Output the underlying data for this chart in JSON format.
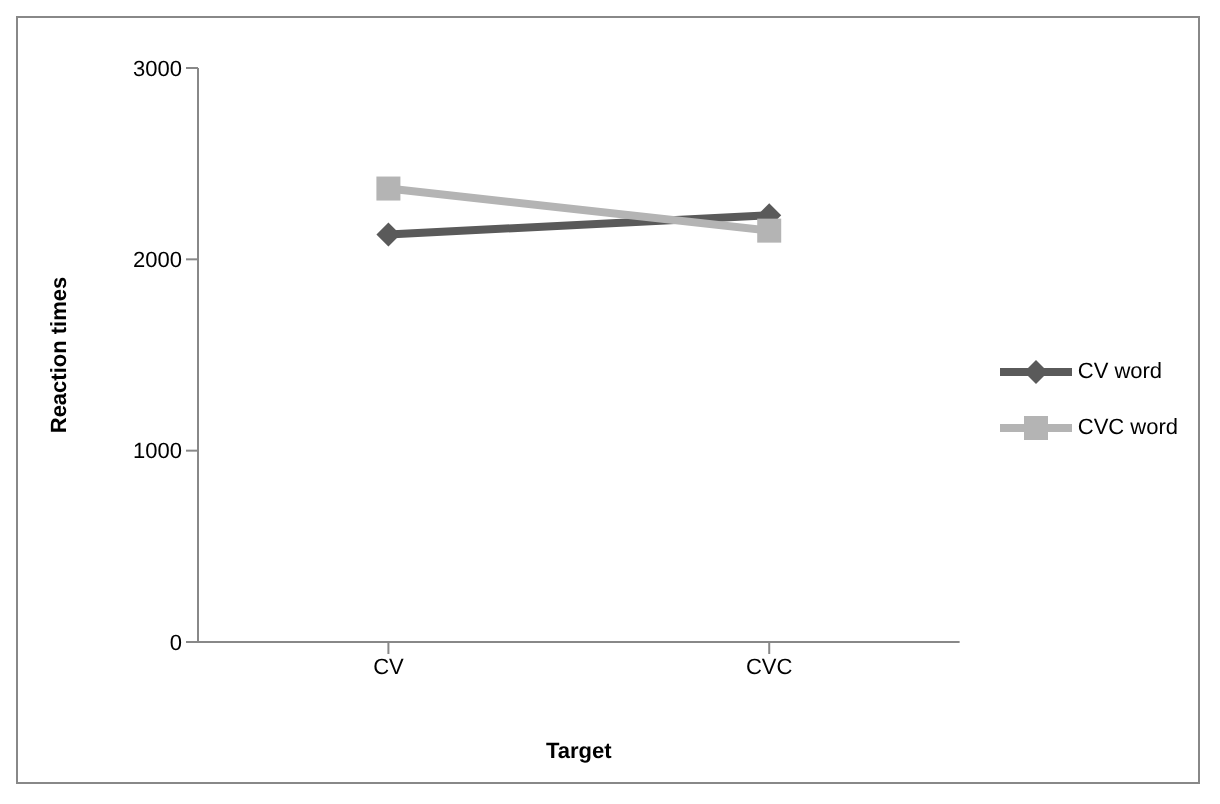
{
  "chart_data": {
    "type": "line",
    "xlabel": "Target",
    "ylabel": "Reaction times",
    "categories": [
      "CV",
      "CVC"
    ],
    "series": [
      {
        "name": "CV word",
        "color": "#5a5a5a",
        "values": [
          2130,
          2230
        ],
        "marker": "diamond"
      },
      {
        "name": "CVC word",
        "color": "#b4b4b4",
        "values": [
          2370,
          2150
        ],
        "marker": "square"
      }
    ],
    "ylim": [
      0,
      3000
    ],
    "yticks": [
      0,
      1000,
      2000,
      3000
    ],
    "grid": false,
    "legend": "right"
  }
}
